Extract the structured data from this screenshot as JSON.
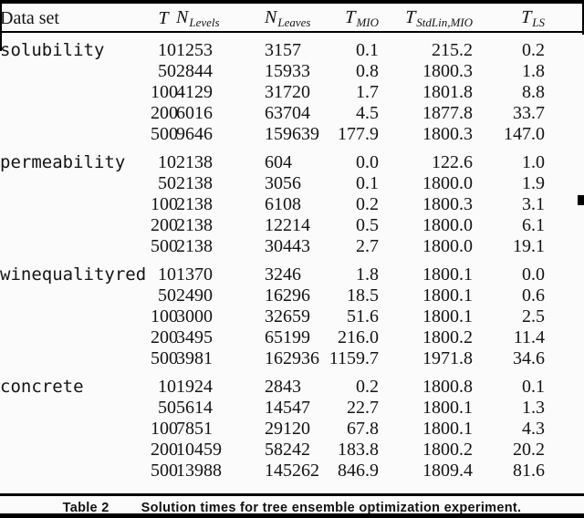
{
  "page": {
    "background": "#fbfbfb",
    "ink": "#000000"
  },
  "header": {
    "cells": [
      {
        "id": "dataset",
        "text": "Data set",
        "style": "roman"
      },
      {
        "id": "t",
        "base": "T",
        "sub": "",
        "style": "math"
      },
      {
        "id": "n-levels",
        "base": "N",
        "sub": "Levels",
        "style": "math"
      },
      {
        "id": "n-leaves",
        "base": "N",
        "sub": "Leaves",
        "style": "math"
      },
      {
        "id": "t-mio",
        "base": "T",
        "sub": "MIO",
        "style": "mathcal"
      },
      {
        "id": "t-stdlin-mio",
        "base": "T",
        "sub": "StdLin,MIO",
        "style": "mathcal"
      },
      {
        "id": "t-ls",
        "base": "T",
        "sub": "LS",
        "style": "mathcal"
      }
    ]
  },
  "groups": [
    {
      "dataset": "solubility",
      "rows": [
        [
          "10",
          "1253",
          "3157",
          "0.1",
          "215.2",
          "0.2"
        ],
        [
          "50",
          "2844",
          "15933",
          "0.8",
          "1800.3",
          "1.8"
        ],
        [
          "100",
          "4129",
          "31720",
          "1.7",
          "1801.8",
          "8.8"
        ],
        [
          "200",
          "6016",
          "63704",
          "4.5",
          "1877.8",
          "33.7"
        ],
        [
          "500",
          "9646",
          "159639",
          "177.9",
          "1800.3",
          "147.0"
        ]
      ]
    },
    {
      "dataset": "permeability",
      "rows": [
        [
          "10",
          "2138",
          "604",
          "0.0",
          "122.6",
          "1.0"
        ],
        [
          "50",
          "2138",
          "3056",
          "0.1",
          "1800.0",
          "1.9"
        ],
        [
          "100",
          "2138",
          "6108",
          "0.2",
          "1800.3",
          "3.1"
        ],
        [
          "200",
          "2138",
          "12214",
          "0.5",
          "1800.0",
          "6.1"
        ],
        [
          "500",
          "2138",
          "30443",
          "2.7",
          "1800.0",
          "19.1"
        ]
      ]
    },
    {
      "dataset": "winequalityred",
      "rows": [
        [
          "10",
          "1370",
          "3246",
          "1.8",
          "1800.1",
          "0.0"
        ],
        [
          "50",
          "2490",
          "16296",
          "18.5",
          "1800.1",
          "0.6"
        ],
        [
          "100",
          "3000",
          "32659",
          "51.6",
          "1800.1",
          "2.5"
        ],
        [
          "200",
          "3495",
          "65199",
          "216.0",
          "1800.2",
          "11.4"
        ],
        [
          "500",
          "3981",
          "162936",
          "1159.7",
          "1971.8",
          "34.6"
        ]
      ]
    },
    {
      "dataset": "concrete",
      "rows": [
        [
          "10",
          "1924",
          "2843",
          "0.2",
          "1800.8",
          "0.1"
        ],
        [
          "50",
          "5614",
          "14547",
          "22.7",
          "1800.1",
          "1.3"
        ],
        [
          "100",
          "7851",
          "29120",
          "67.8",
          "1800.1",
          "4.3"
        ],
        [
          "200",
          "10459",
          "58242",
          "183.8",
          "1800.2",
          "20.2"
        ],
        [
          "500",
          "13988",
          "145262",
          "846.9",
          "1809.4",
          "81.6"
        ]
      ]
    }
  ],
  "caption": {
    "label": "Table 2",
    "text": "Solution times for tree ensemble optimization experiment."
  }
}
